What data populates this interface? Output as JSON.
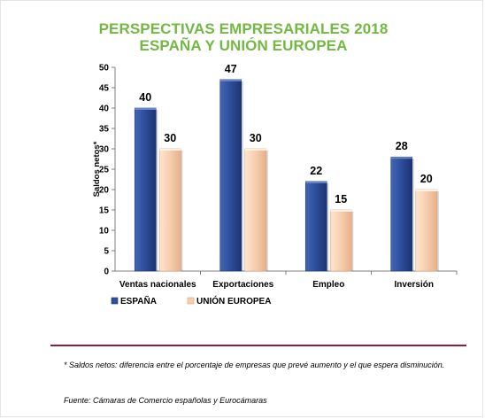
{
  "chart_data": {
    "type": "bar",
    "title": "PERSPECTIVAS EMPRESARIALES 2018",
    "subtitle": "ESPAÑA Y UNIÓN EUROPEA",
    "xlabel": "",
    "ylabel": "Saldos netos*",
    "ylim": [
      0,
      50
    ],
    "yticks": [
      0,
      5,
      10,
      15,
      20,
      25,
      30,
      35,
      40,
      45,
      50
    ],
    "grid": false,
    "legend_position": "bottom-left",
    "categories": [
      "Ventas nacionales",
      "Exportaciones",
      "Empleo",
      "Inversión"
    ],
    "series": [
      {
        "name": "ESPAÑA",
        "values": [
          40,
          47,
          22,
          28
        ],
        "color": "#2e4f9c"
      },
      {
        "name": "UNIÓN EUROPEA",
        "values": [
          30,
          30,
          15,
          20
        ],
        "color": "#f6ceae"
      }
    ]
  },
  "footnote": "* Saldos netos: diferencia entre el porcentaje de empresas que  prevé aumento y el que espera disminución.",
  "source": "Fuente: Cámaras de Comercio españolas y Eurocámaras"
}
